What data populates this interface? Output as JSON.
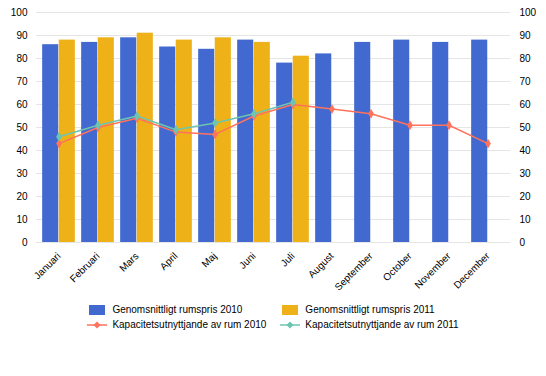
{
  "chart_data": {
    "type": "bar",
    "categories": [
      "Januari",
      "Februari",
      "Mars",
      "April",
      "Maj",
      "Juni",
      "Juli",
      "August",
      "September",
      "October",
      "November",
      "December"
    ],
    "series": [
      {
        "name": "Genomsnittligt rumspris 2010",
        "type": "bar",
        "values": [
          86,
          87,
          89,
          85,
          84,
          88,
          78,
          82,
          87,
          88,
          87,
          88
        ]
      },
      {
        "name": "Genomsnittligt rumspris 2011",
        "type": "bar",
        "values": [
          88,
          89,
          91,
          88,
          89,
          87,
          81,
          null,
          null,
          null,
          null,
          null
        ]
      },
      {
        "name": "Kapacitetsutnyttjande av rum 2010",
        "type": "line",
        "axis": "y2",
        "marker": "diamond",
        "values": [
          43,
          50,
          54,
          48,
          47,
          55,
          60,
          58,
          56,
          51,
          51,
          43
        ]
      },
      {
        "name": "Kapacitetsutnyttjande av rum 2011",
        "type": "line",
        "axis": "y2",
        "marker": "diamond",
        "values": [
          46,
          51,
          55,
          49,
          52,
          56,
          61,
          null,
          null,
          null,
          null,
          null
        ]
      }
    ],
    "ylim": [
      0,
      100
    ],
    "yticks": [
      0,
      10,
      20,
      30,
      40,
      50,
      60,
      70,
      80,
      90,
      100
    ],
    "y2lim": [
      0,
      100
    ],
    "y2ticks": [
      0,
      10,
      20,
      30,
      40,
      50,
      60,
      70,
      80,
      90,
      100
    ],
    "grid": true,
    "legend": "bottom"
  }
}
